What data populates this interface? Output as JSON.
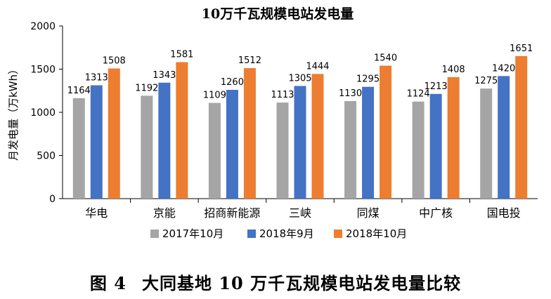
{
  "chart_data": {
    "type": "bar",
    "title": "10万千瓦规模电站发电量",
    "xlabel": "",
    "ylabel": "月发电量（万kWh）",
    "ylim": [
      0,
      2000
    ],
    "yticks": [
      0,
      500,
      1000,
      1500,
      2000
    ],
    "categories": [
      "华电",
      "京能",
      "招商新能源",
      "三峡",
      "同煤",
      "中广核",
      "国电投"
    ],
    "series": [
      {
        "name": "2017年10月",
        "color": "#a5a5a5",
        "values": [
          1164,
          1192,
          1109,
          1113,
          1130,
          1124,
          1275
        ]
      },
      {
        "name": "2018年9月",
        "color": "#4472c4",
        "values": [
          1313,
          1343,
          1260,
          1305,
          1295,
          1213,
          1420
        ]
      },
      {
        "name": "2018年10月",
        "color": "#ed7d31",
        "values": [
          1508,
          1581,
          1512,
          1444,
          1540,
          1408,
          1651
        ]
      }
    ],
    "grid": false,
    "legend": "bottom"
  },
  "caption": {
    "figure_label": "图 4",
    "text": "大同基地 10 万千瓦规模电站发电量比较"
  }
}
